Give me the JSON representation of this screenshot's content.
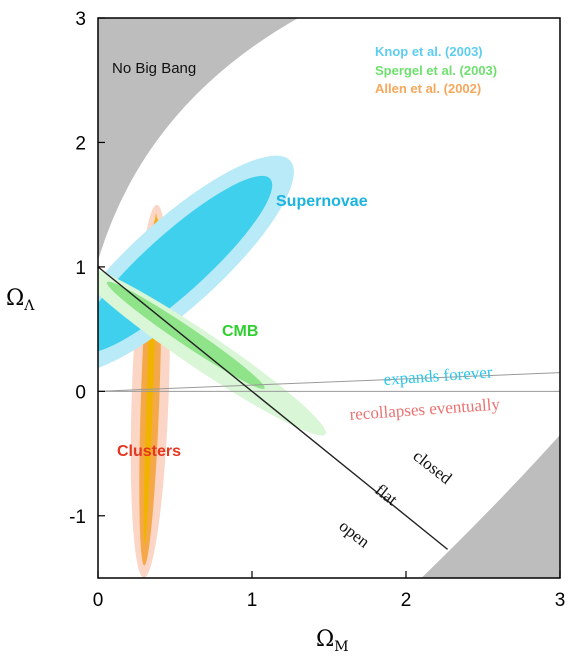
{
  "chart_data": {
    "type": "scatter",
    "title": "",
    "xlabel_main": "Ω",
    "xlabel_sub": "M",
    "ylabel_main": "Ω",
    "ylabel_sub": "Λ",
    "xlim": [
      0,
      3
    ],
    "ylim": [
      -1.5,
      3
    ],
    "x_ticks": [
      "0",
      "1",
      "2",
      "3"
    ],
    "y_ticks": [
      "3",
      "2",
      "1",
      "0",
      "-1"
    ],
    "legend": [
      {
        "label": "Knop et al. (2003)",
        "color": "#5ecdf0"
      },
      {
        "label": "Spergel et al.  (2003)",
        "color": "#6fe06f"
      },
      {
        "label": "Allen et al.  (2002)",
        "color": "#f5a85c"
      }
    ],
    "regions": {
      "no_big_bang": "No Big Bang",
      "supernovae": "Supernovae",
      "cmb": "CMB",
      "clusters": "Clusters"
    },
    "line_labels": {
      "expands": "expands forever",
      "recollapses": "recollapses eventually",
      "closed": "closed",
      "flat": "flat",
      "open": "open"
    },
    "colors": {
      "supernovae_outer": "#b8eaf7",
      "supernovae_inner": "#3fd0ee",
      "supernovae_label": "#1bb4e0",
      "cmb_outer": "#d9f6d6",
      "cmb_inner": "#8fe48a",
      "cmb_label": "#2fcf2f",
      "clusters_outer": "#fbd6c6",
      "clusters_inner": "#f5a84a",
      "clusters_core": "#f0b400",
      "clusters_label": "#e5361f",
      "expands_label": "#2ec6ea",
      "recollapses_label": "#ec7272",
      "gray_region": "#bdbdbd"
    },
    "flat_line": {
      "x": [
        0,
        2.27
      ],
      "y": [
        1,
        -1.27
      ]
    },
    "loitering_line": {
      "x": [
        0,
        3
      ],
      "y": [
        0,
        0.15
      ]
    },
    "supernovae": {
      "center": [
        0.5,
        1.02
      ],
      "sigma1": [
        0.3,
        0.95
      ],
      "sigma2": [
        0.42,
        1.15
      ]
    },
    "cmb": {
      "center": [
        0.67,
        0.33
      ],
      "sigma1": [
        0.5,
        0.1
      ],
      "sigma2": [
        0.9,
        0.17
      ]
    },
    "clusters": {
      "center": [
        0.34,
        0.0
      ],
      "sigma1": [
        0.06,
        1.4
      ],
      "sigma2": [
        0.12,
        1.5
      ]
    }
  }
}
